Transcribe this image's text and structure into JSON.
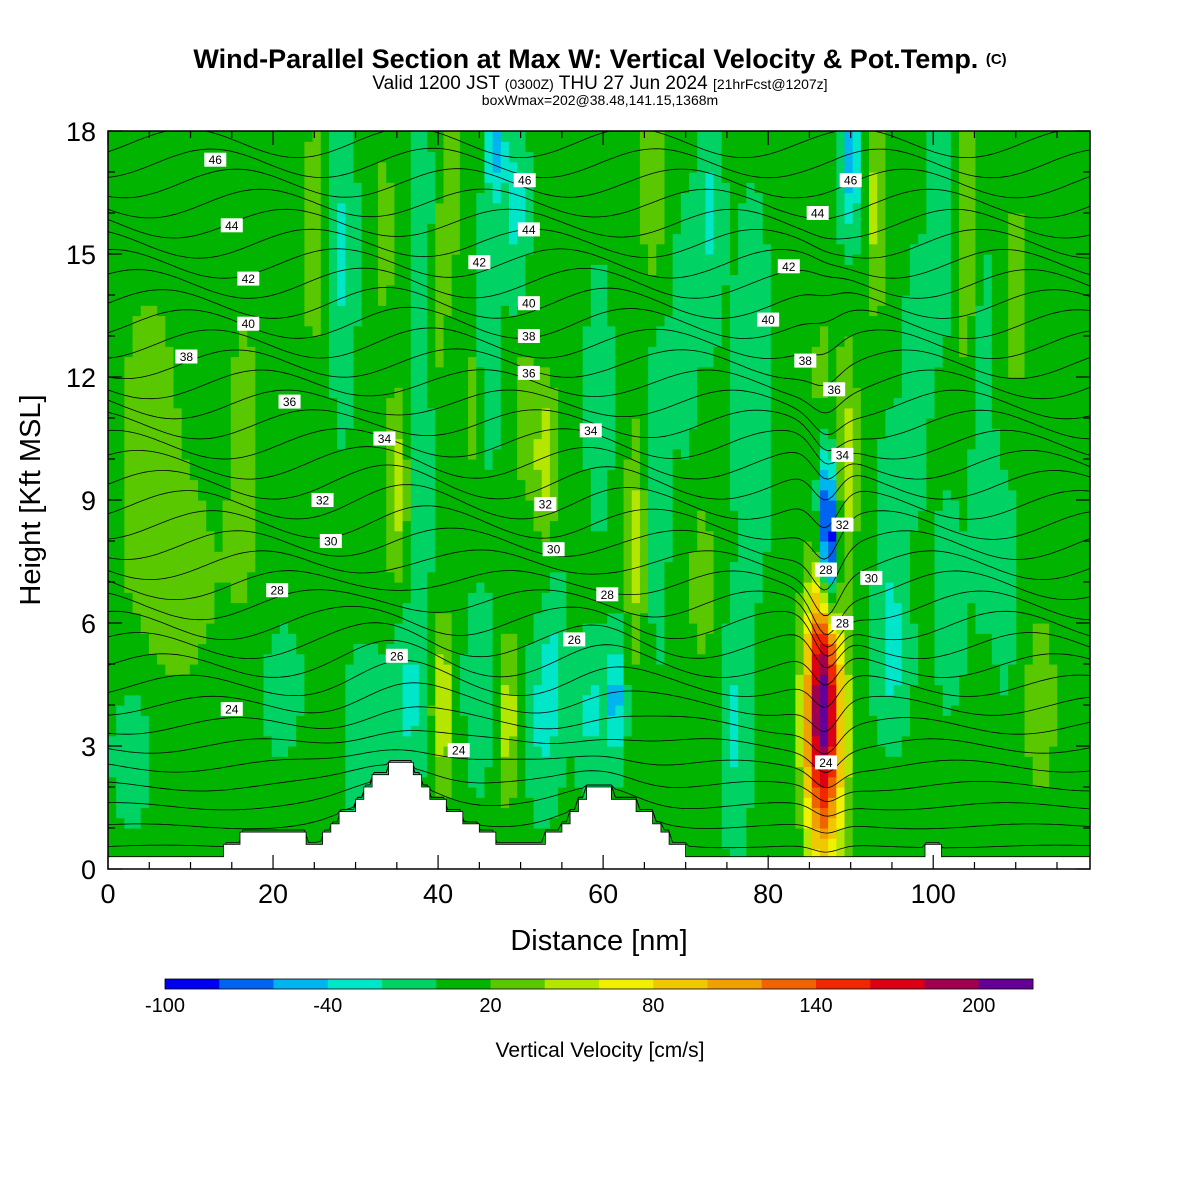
{
  "title": {
    "main": "Wind-Parallel Section at Max W: Vertical Velocity & Pot.Temp.",
    "main_mark": "(C)",
    "valid_prefix": "Valid 1200 JST",
    "valid_z": "(0300Z)",
    "valid_date": "THU 27 Jun 2024",
    "valid_fcst": "[21hrFcst@1207z]",
    "box_info": "boxWmax=202@38.48,141.15,1368m"
  },
  "chart_data": {
    "type": "heatmap",
    "xlabel": "Distance [nm]",
    "ylabel": "Height [Kft MSL]",
    "xlim": [
      0,
      119
    ],
    "ylim": [
      0,
      18
    ],
    "x_ticks": [
      0,
      20,
      40,
      60,
      80,
      100
    ],
    "y_ticks": [
      0,
      3,
      6,
      9,
      12,
      15,
      18
    ],
    "colorbar": {
      "title": "Vertical Velocity [cm/s]",
      "levels": [
        -100,
        -80,
        -60,
        -40,
        -20,
        0,
        20,
        40,
        60,
        80,
        100,
        120,
        140,
        160,
        180,
        200,
        220
      ],
      "colors": [
        "#0000f0",
        "#0064f0",
        "#00b4f0",
        "#00e6c8",
        "#00d264",
        "#00b400",
        "#5ac800",
        "#b4e600",
        "#f0f000",
        "#f0c800",
        "#f0a000",
        "#f06400",
        "#f02800",
        "#dc0014",
        "#a00050",
        "#640096"
      ],
      "tick_labels": [
        "-100",
        "-40",
        "20",
        "80",
        "140",
        "200"
      ],
      "tick_values": [
        -100,
        -40,
        20,
        80,
        140,
        200
      ]
    },
    "background_velocity": 5,
    "terrain": [
      [
        0,
        0.3
      ],
      [
        14,
        0.3
      ],
      [
        14,
        0.6
      ],
      [
        16,
        0.6
      ],
      [
        16,
        0.9
      ],
      [
        24,
        0.9
      ],
      [
        24,
        0.6
      ],
      [
        26,
        0.6
      ],
      [
        26,
        0.9
      ],
      [
        27,
        0.9
      ],
      [
        27,
        1.1
      ],
      [
        28,
        1.1
      ],
      [
        28,
        1.4
      ],
      [
        30,
        1.4
      ],
      [
        30,
        1.7
      ],
      [
        31,
        1.7
      ],
      [
        31,
        2.0
      ],
      [
        32,
        2.0
      ],
      [
        32,
        2.3
      ],
      [
        34,
        2.3
      ],
      [
        34,
        2.6
      ],
      [
        37,
        2.6
      ],
      [
        37,
        2.3
      ],
      [
        38,
        2.3
      ],
      [
        38,
        2.0
      ],
      [
        39,
        2.0
      ],
      [
        39,
        1.7
      ],
      [
        41,
        1.7
      ],
      [
        41,
        1.4
      ],
      [
        43,
        1.4
      ],
      [
        43,
        1.1
      ],
      [
        45,
        1.1
      ],
      [
        45,
        0.9
      ],
      [
        47,
        0.9
      ],
      [
        47,
        0.6
      ],
      [
        53,
        0.6
      ],
      [
        53,
        0.9
      ],
      [
        55,
        0.9
      ],
      [
        55,
        1.1
      ],
      [
        56,
        1.1
      ],
      [
        56,
        1.4
      ],
      [
        57,
        1.4
      ],
      [
        57,
        1.7
      ],
      [
        58,
        1.7
      ],
      [
        58,
        2.0
      ],
      [
        61,
        2.0
      ],
      [
        61,
        1.7
      ],
      [
        64,
        1.7
      ],
      [
        64,
        1.4
      ],
      [
        66,
        1.4
      ],
      [
        66,
        1.1
      ],
      [
        67,
        1.1
      ],
      [
        67,
        0.9
      ],
      [
        68,
        0.9
      ],
      [
        68,
        0.6
      ],
      [
        70,
        0.6
      ],
      [
        70,
        0.3
      ],
      [
        99,
        0.3
      ],
      [
        99,
        0.6
      ],
      [
        101,
        0.6
      ],
      [
        101,
        0.3
      ],
      [
        119,
        0.3
      ]
    ],
    "features": [
      {
        "x": 86.5,
        "y": 3.4,
        "sx": 1.8,
        "sy": 2.3,
        "w": 197
      },
      {
        "x": 86.8,
        "y": 5.6,
        "sx": 1.1,
        "sy": 1.3,
        "w": 55
      },
      {
        "x": 87.5,
        "y": 7.5,
        "sx": 0.8,
        "sy": 1.3,
        "w": -110
      },
      {
        "x": 87.0,
        "y": 9.0,
        "sx": 0.7,
        "sy": 1.2,
        "w": -55
      },
      {
        "x": 89.5,
        "y": 10.0,
        "sx": 1.0,
        "sy": 2.0,
        "w": 45
      },
      {
        "x": 86.5,
        "y": 12.0,
        "sx": 0.9,
        "sy": 1.4,
        "w": 25
      },
      {
        "x": 90,
        "y": 17.2,
        "sx": 0.9,
        "sy": 1.3,
        "w": -55
      },
      {
        "x": 93,
        "y": 16.2,
        "sx": 1.0,
        "sy": 2.0,
        "w": 40
      },
      {
        "x": 84,
        "y": 2.5,
        "sx": 1.5,
        "sy": 3.0,
        "w": -25
      },
      {
        "x": 76,
        "y": 3.5,
        "sx": 1.2,
        "sy": 1.8,
        "w": -30
      },
      {
        "x": 78,
        "y": 11.5,
        "sx": 1.5,
        "sy": 3.0,
        "w": -22
      },
      {
        "x": 40.5,
        "y": 4.0,
        "sx": 1.0,
        "sy": 1.5,
        "w": 55
      },
      {
        "x": 48.5,
        "y": 3.7,
        "sx": 1.0,
        "sy": 1.5,
        "w": 45
      },
      {
        "x": 36.5,
        "y": 4.2,
        "sx": 1.6,
        "sy": 1.5,
        "w": -30
      },
      {
        "x": 45,
        "y": 4.4,
        "sx": 1.2,
        "sy": 1.5,
        "w": -25
      },
      {
        "x": 52.5,
        "y": 3.7,
        "sx": 1.2,
        "sy": 1.4,
        "w": -28
      },
      {
        "x": 54,
        "y": 5.0,
        "sx": 1.0,
        "sy": 1.8,
        "w": -22
      },
      {
        "x": 61.5,
        "y": 4.2,
        "sx": 0.8,
        "sy": 1.0,
        "w": -55
      },
      {
        "x": 58.5,
        "y": 3.8,
        "sx": 1.3,
        "sy": 1.2,
        "w": -30
      },
      {
        "x": 35.0,
        "y": 9.3,
        "sx": 1.0,
        "sy": 1.7,
        "w": 45
      },
      {
        "x": 38.0,
        "y": 9.5,
        "sx": 1.0,
        "sy": 2.0,
        "w": -25
      },
      {
        "x": 53.0,
        "y": 10.0,
        "sx": 1.0,
        "sy": 1.5,
        "w": 50
      },
      {
        "x": 50.5,
        "y": 11.0,
        "sx": 0.8,
        "sy": 1.3,
        "w": 35
      },
      {
        "x": 64.0,
        "y": 8.0,
        "sx": 0.9,
        "sy": 2.0,
        "w": 45
      },
      {
        "x": 66.5,
        "y": 10.0,
        "sx": 1.0,
        "sy": 3.0,
        "w": -22
      },
      {
        "x": 59.5,
        "y": 11.5,
        "sx": 1.0,
        "sy": 2.0,
        "w": -22
      },
      {
        "x": 46,
        "y": 13.0,
        "sx": 1.0,
        "sy": 2.0,
        "w": -25
      },
      {
        "x": 47,
        "y": 17.5,
        "sx": 0.8,
        "sy": 1.0,
        "w": -50
      },
      {
        "x": 49.5,
        "y": 16.2,
        "sx": 0.9,
        "sy": 1.5,
        "w": -35
      },
      {
        "x": 41.5,
        "y": 17.0,
        "sx": 1.0,
        "sy": 1.5,
        "w": 35
      },
      {
        "x": 38,
        "y": 15.5,
        "sx": 1.0,
        "sy": 2.0,
        "w": -25
      },
      {
        "x": 28.5,
        "y": 15.0,
        "sx": 1.0,
        "sy": 2.5,
        "w": -30
      },
      {
        "x": 25,
        "y": 15.5,
        "sx": 1.0,
        "sy": 2.0,
        "w": 35
      },
      {
        "x": 33.5,
        "y": 15.5,
        "sx": 0.8,
        "sy": 1.5,
        "w": 30
      },
      {
        "x": 40,
        "y": 13.5,
        "sx": 1.0,
        "sy": 1.5,
        "w": 25
      },
      {
        "x": 66,
        "y": 16.5,
        "sx": 1.0,
        "sy": 2.0,
        "w": 35
      },
      {
        "x": 73,
        "y": 16.0,
        "sx": 1.0,
        "sy": 2.0,
        "w": -28
      },
      {
        "x": 70,
        "y": 13.0,
        "sx": 1.0,
        "sy": 2.0,
        "w": -22
      },
      {
        "x": 101,
        "y": 16.0,
        "sx": 1.0,
        "sy": 2.0,
        "w": -25
      },
      {
        "x": 104,
        "y": 15.5,
        "sx": 1.0,
        "sy": 2.5,
        "w": 35
      },
      {
        "x": 106,
        "y": 11.0,
        "sx": 1.0,
        "sy": 3.0,
        "w": -22
      },
      {
        "x": 110,
        "y": 14.0,
        "sx": 1.5,
        "sy": 2.5,
        "w": 22
      },
      {
        "x": 98,
        "y": 12.0,
        "sx": 1.0,
        "sy": 2.0,
        "w": -20
      },
      {
        "x": 95,
        "y": 8.0,
        "sx": 1.2,
        "sy": 2.0,
        "w": -22
      },
      {
        "x": 102,
        "y": 6.5,
        "sx": 1.2,
        "sy": 1.5,
        "w": -25
      },
      {
        "x": 95,
        "y": 5.0,
        "sx": 1.5,
        "sy": 1.2,
        "w": -25
      },
      {
        "x": 5,
        "y": 10.0,
        "sx": 4.5,
        "sy": 5.0,
        "w": 20
      },
      {
        "x": 16.5,
        "y": 10.0,
        "sx": 2.0,
        "sy": 4.0,
        "w": 20
      },
      {
        "x": 21,
        "y": 4.4,
        "sx": 1.5,
        "sy": 1.0,
        "w": -22
      },
      {
        "x": 31,
        "y": 3.0,
        "sx": 1.5,
        "sy": 1.5,
        "w": -22
      },
      {
        "x": 9,
        "y": 7.0,
        "sx": 3.0,
        "sy": 1.5,
        "w": 22
      },
      {
        "x": 3,
        "y": 3.0,
        "sx": 2.0,
        "sy": 1.5,
        "w": -22
      },
      {
        "x": 113,
        "y": 4.0,
        "sx": 2.0,
        "sy": 2.5,
        "w": 22
      },
      {
        "x": 109,
        "y": 7.0,
        "sx": 1.0,
        "sy": 2.0,
        "w": -20
      },
      {
        "x": 72,
        "y": 7.0,
        "sx": 1.5,
        "sy": 2.0,
        "w": 22
      },
      {
        "x": 44,
        "y": 11.5,
        "sx": 1.0,
        "sy": 2.0,
        "w": 22
      }
    ],
    "contour_labels": [
      {
        "text": "46",
        "x": 13,
        "y": 17.3
      },
      {
        "text": "44",
        "x": 15,
        "y": 15.7
      },
      {
        "text": "42",
        "x": 17,
        "y": 14.4
      },
      {
        "text": "40",
        "x": 17,
        "y": 13.3
      },
      {
        "text": "38",
        "x": 9.5,
        "y": 12.5
      },
      {
        "text": "36",
        "x": 22,
        "y": 11.4
      },
      {
        "text": "34",
        "x": 33.5,
        "y": 10.5
      },
      {
        "text": "32",
        "x": 26,
        "y": 9.0
      },
      {
        "text": "30",
        "x": 27,
        "y": 8.0
      },
      {
        "text": "28",
        "x": 20.5,
        "y": 6.8
      },
      {
        "text": "26",
        "x": 35,
        "y": 5.2
      },
      {
        "text": "24",
        "x": 15,
        "y": 3.9
      },
      {
        "text": "24",
        "x": 42.5,
        "y": 2.9
      },
      {
        "text": "46",
        "x": 50.5,
        "y": 16.8
      },
      {
        "text": "44",
        "x": 51,
        "y": 15.6
      },
      {
        "text": "42",
        "x": 45,
        "y": 14.8
      },
      {
        "text": "40",
        "x": 51,
        "y": 13.8
      },
      {
        "text": "38",
        "x": 51,
        "y": 13.0
      },
      {
        "text": "36",
        "x": 51,
        "y": 12.1
      },
      {
        "text": "34",
        "x": 58.5,
        "y": 10.7
      },
      {
        "text": "32",
        "x": 53,
        "y": 8.9
      },
      {
        "text": "30",
        "x": 54,
        "y": 7.8
      },
      {
        "text": "28",
        "x": 60.5,
        "y": 6.7
      },
      {
        "text": "26",
        "x": 56.5,
        "y": 5.6
      },
      {
        "text": "46",
        "x": 90,
        "y": 16.8
      },
      {
        "text": "44",
        "x": 86,
        "y": 16.0
      },
      {
        "text": "42",
        "x": 82.5,
        "y": 14.7
      },
      {
        "text": "40",
        "x": 80,
        "y": 13.4
      },
      {
        "text": "38",
        "x": 84.5,
        "y": 12.4
      },
      {
        "text": "36",
        "x": 88,
        "y": 11.7
      },
      {
        "text": "34",
        "x": 89,
        "y": 10.1
      },
      {
        "text": "32",
        "x": 89,
        "y": 8.4
      },
      {
        "text": "30",
        "x": 92.5,
        "y": 7.1
      },
      {
        "text": "28",
        "x": 87,
        "y": 7.3
      },
      {
        "text": "28",
        "x": 89,
        "y": 6.0
      },
      {
        "text": "24",
        "x": 87,
        "y": 2.6
      }
    ]
  }
}
